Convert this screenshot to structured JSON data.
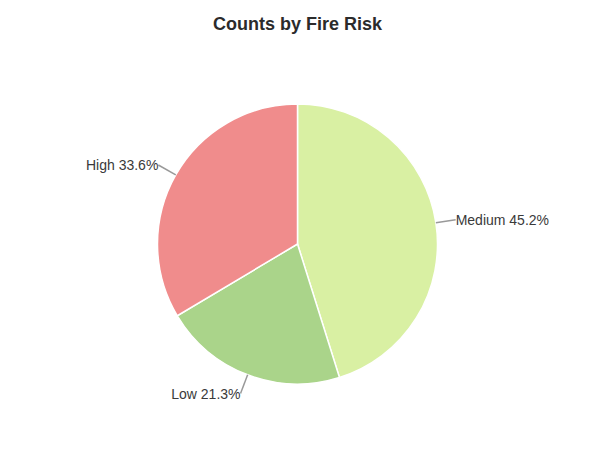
{
  "chart_data": {
    "type": "pie",
    "title": "Counts by Fire Risk",
    "categories": [
      "Medium",
      "Low",
      "High"
    ],
    "values": [
      45.2,
      21.3,
      33.6
    ],
    "value_labels": [
      "Medium 45.2%",
      "Low 21.3%",
      "High 33.6%"
    ],
    "colors": [
      "#d9f0a3",
      "#aad48a",
      "#f08c8c"
    ],
    "data_labels": true
  }
}
